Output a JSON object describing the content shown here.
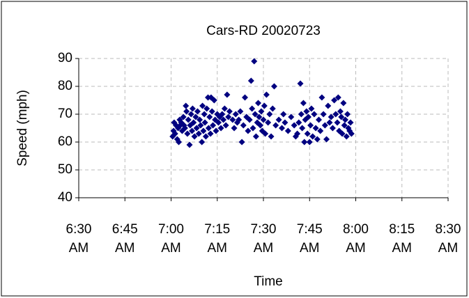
{
  "chart_data": {
    "type": "scatter",
    "title": "Cars-RD 20020723",
    "x_label": "Time",
    "y_label": "Speed (mph)",
    "color": "#000080",
    "grid": true,
    "xlim": [
      390,
      510
    ],
    "xticks": [
      {
        "value": 390,
        "label": "6:30 AM"
      },
      {
        "value": 405,
        "label": "6:45 AM"
      },
      {
        "value": 420,
        "label": "7:00 AM"
      },
      {
        "value": 435,
        "label": "7:15 AM"
      },
      {
        "value": 450,
        "label": "7:30 AM"
      },
      {
        "value": 465,
        "label": "7:45 AM"
      },
      {
        "value": 480,
        "label": "8:00 AM"
      },
      {
        "value": 495,
        "label": "8:15 AM"
      },
      {
        "value": 510,
        "label": "8:30 AM"
      }
    ],
    "ylim": [
      40,
      90
    ],
    "yticks": [
      40,
      50,
      60,
      70,
      80,
      90
    ],
    "x": [
      420.5,
      420.8,
      421,
      421.3,
      421.6,
      422,
      422.3,
      422.5,
      422.8,
      423,
      423.3,
      423.6,
      424,
      424.2,
      424.5,
      424.8,
      425,
      425.3,
      425.6,
      426,
      426.2,
      426.5,
      426.8,
      427,
      427.3,
      427.6,
      428,
      428.3,
      428.6,
      429,
      429.3,
      429.6,
      430,
      430.2,
      430.5,
      430.8,
      431,
      431.3,
      431.6,
      432,
      432.2,
      432.5,
      432.8,
      433,
      433.3,
      433.6,
      434,
      434.3,
      434.6,
      435,
      435.4,
      435.8,
      436.2,
      436.6,
      437,
      437.4,
      437.8,
      438.2,
      438.6,
      439,
      440,
      440.5,
      441,
      441.5,
      442,
      442.5,
      443,
      443.5,
      444,
      444.5,
      445,
      445.5,
      446,
      446.3,
      446.6,
      447,
      447.3,
      447.6,
      448,
      448.3,
      448.6,
      449,
      449.3,
      449.6,
      450,
      450.3,
      450.6,
      451,
      451.5,
      452,
      452.5,
      453,
      453.5,
      454,
      455,
      456,
      456.5,
      457,
      458,
      459,
      460,
      460.5,
      461,
      461.5,
      462,
      462.3,
      462.6,
      463,
      463.3,
      463.6,
      464,
      464.3,
      464.6,
      465,
      465.3,
      465.6,
      466,
      466.5,
      467,
      467.5,
      468,
      468.5,
      469,
      469.5,
      470,
      470.5,
      471,
      471.5,
      472,
      472.5,
      473,
      473.5,
      474,
      474.3,
      474.6,
      475,
      475.3,
      475.6,
      476,
      476.3,
      476.6,
      477,
      477.3,
      477.6,
      478,
      478.3,
      478.6
    ],
    "values": [
      62,
      64,
      67,
      63,
      66,
      61,
      65,
      60,
      68,
      66,
      67,
      64,
      69,
      66,
      65,
      73,
      71,
      63,
      68,
      59,
      66,
      70,
      64,
      72,
      67,
      62,
      69,
      65,
      71,
      63,
      68,
      66,
      60,
      73,
      64,
      70,
      67,
      62,
      72,
      76,
      65,
      69,
      63,
      76,
      71,
      66,
      75,
      68,
      64,
      70,
      67,
      69,
      65,
      70,
      68,
      72,
      66,
      77,
      69,
      71,
      68,
      65,
      70,
      67,
      68,
      71,
      60,
      66,
      76,
      69,
      64,
      68,
      82,
      72,
      65,
      89,
      70,
      62,
      67,
      74,
      69,
      66,
      71,
      64,
      68,
      73,
      63,
      77,
      67,
      70,
      62,
      72,
      80,
      66,
      68,
      65,
      70,
      67,
      64,
      69,
      66,
      62,
      63,
      67,
      81,
      70,
      65,
      74,
      60,
      68,
      71,
      63,
      69,
      60,
      66,
      72,
      62,
      70,
      65,
      61,
      68,
      64,
      76,
      70,
      66,
      61,
      73,
      67,
      69,
      65,
      75,
      70,
      67,
      76,
      64,
      71,
      69,
      63,
      74,
      66,
      68,
      62,
      70,
      65,
      64,
      67,
      63
    ]
  }
}
